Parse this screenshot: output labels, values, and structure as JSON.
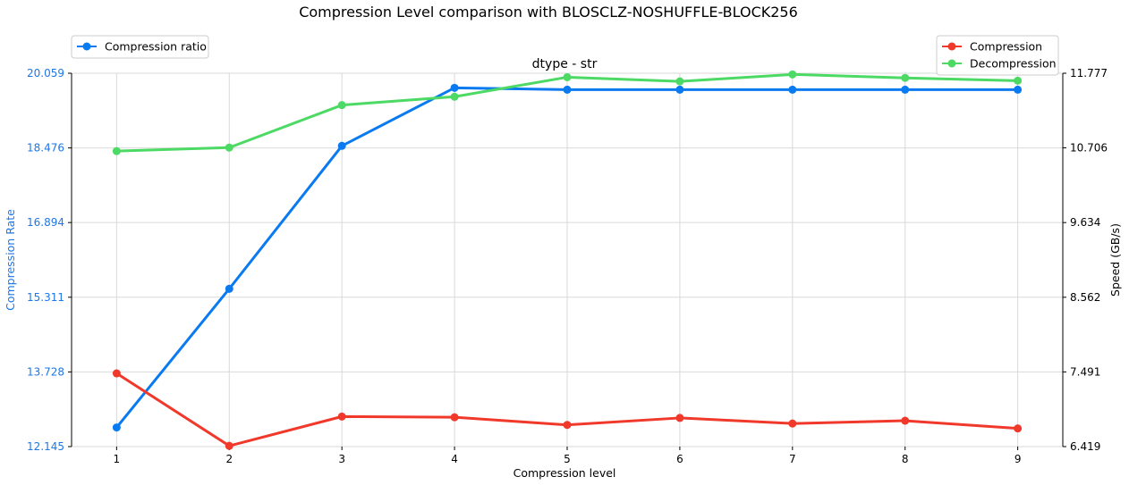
{
  "chart_data": {
    "type": "line",
    "title": "Compression Level comparison with BLOSCLZ-NOSHUFFLE-BLOCK256",
    "subtitle": "dtype - str",
    "xlabel": "Compression level",
    "ylabel_left": "Compression Rate",
    "ylabel_right": "Speed (GB/s)",
    "x": [
      1,
      2,
      3,
      4,
      5,
      6,
      7,
      8,
      9
    ],
    "x_tick_labels": [
      "1",
      "2",
      "3",
      "4",
      "5",
      "6",
      "7",
      "8",
      "9"
    ],
    "xlim": [
      0.6,
      9.4
    ],
    "ylim_left": [
      12.145,
      20.059
    ],
    "ylim_right": [
      6.419,
      11.777
    ],
    "left_ticks": [
      "12.145",
      "13.728",
      "15.311",
      "16.894",
      "18.476",
      "20.059"
    ],
    "right_ticks": [
      "6.419",
      "7.491",
      "8.562",
      "9.634",
      "10.706",
      "11.777"
    ],
    "grid": true,
    "left_axis_color": "#1f77e6",
    "series": [
      {
        "name": "Compression ratio",
        "axis": "left",
        "color": "#0a7af0",
        "values": [
          12.55,
          15.49,
          18.52,
          19.75,
          19.71,
          19.71,
          19.71,
          19.71,
          19.71
        ]
      },
      {
        "name": "Compression",
        "axis": "right",
        "color": "#f0392b",
        "values": [
          7.47,
          6.43,
          6.85,
          6.84,
          6.73,
          6.83,
          6.75,
          6.79,
          6.68
        ]
      },
      {
        "name": "Decompression",
        "axis": "right",
        "color": "#4cd964",
        "values": [
          10.66,
          10.71,
          11.32,
          11.44,
          11.72,
          11.66,
          11.76,
          11.71,
          11.67
        ]
      }
    ],
    "legend_left": {
      "placement": "top-left-outside",
      "items": [
        "Compression ratio"
      ]
    },
    "legend_right": {
      "placement": "top-right-outside",
      "items": [
        "Compression",
        "Decompression"
      ]
    }
  }
}
